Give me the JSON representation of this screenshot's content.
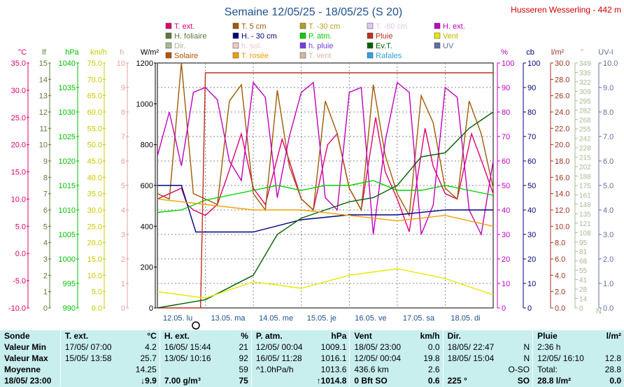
{
  "title": "Semaine 12/05/25 - 18/05/25 (S 20)",
  "station": "Husseren Wesserling - 442 m",
  "legend": [
    {
      "label": "T. ext.",
      "color": "#e0006e"
    },
    {
      "label": "T. 5 cm",
      "color": "#a05a00"
    },
    {
      "label": "T. -30 cm",
      "color": "#b0a020"
    },
    {
      "label": "T. -80 cm",
      "color": "#e0c8f0"
    },
    {
      "label": "H. ext.",
      "color": "#c000c0"
    },
    {
      "label": "H. foliaire",
      "color": "#5a7a3a"
    },
    {
      "label": "H. - 30 cm",
      "color": "#00007f"
    },
    {
      "label": "P. atm.",
      "color": "#00d000"
    },
    {
      "label": "Pluie",
      "color": "#c03020"
    },
    {
      "label": "Vent",
      "color": "#e8e800"
    },
    {
      "label": "Dir.",
      "color": "#a8b890"
    },
    {
      "label": "h. sol.",
      "color": "#f0c8c8"
    },
    {
      "label": "h. pluie",
      "color": "#7040e0"
    },
    {
      "label": "Ev.T.",
      "color": "#006000"
    },
    {
      "label": "UV",
      "color": "#6070a0"
    },
    {
      "label": "Solaire",
      "color": "#b85000"
    },
    {
      "label": "T. rosée",
      "color": "#f0a000"
    },
    {
      "label": "T. vent",
      "color": "#d8b8a0"
    },
    {
      "label": "Rafales",
      "color": "#30a0e0"
    }
  ],
  "axes": {
    "left": [
      {
        "unit": "°C",
        "color": "#e0006e",
        "ticks": [
          "35.0",
          "30.0",
          "25.0",
          "20.0",
          "15.0",
          "10.0",
          "5.0",
          "0.0",
          "-5.0",
          "-10.0"
        ]
      },
      {
        "unit": "lf",
        "color": "#5a7a3a",
        "ticks": [
          "15",
          "14",
          "13",
          "12",
          "11",
          "10",
          "9",
          "8",
          "7",
          "6",
          "5",
          "4",
          "3",
          "2",
          "1",
          "0"
        ]
      },
      {
        "unit": "hPa",
        "color": "#00c000",
        "ticks": [
          "1040",
          "1035",
          "1030",
          "1025",
          "1020",
          "1015",
          "1010",
          "1005",
          "1000",
          "995",
          "990"
        ]
      },
      {
        "unit": "km/h",
        "color": "#c8c800",
        "ticks": [
          "75.0",
          "70.0",
          "65.0",
          "60.0",
          "55.0",
          "50.0",
          "45.0",
          "40.0",
          "35.0",
          "30.0",
          "25.0",
          "20.0",
          "15.0",
          "10.0",
          "5.0",
          "0.0"
        ]
      },
      {
        "unit": "h",
        "color": "#e0a0a0",
        "ticks": [
          "10",
          "9",
          "8",
          "7",
          "6",
          "5",
          "4",
          "3",
          "2",
          "1",
          "0"
        ]
      },
      {
        "unit": "W/m²",
        "color": "#000000",
        "ticks": [
          "1200",
          "1000",
          "800",
          "600",
          "400",
          "200",
          "0"
        ]
      }
    ],
    "right": [
      {
        "unit": "%",
        "color": "#c000c0",
        "ticks": [
          "100",
          "90",
          "80",
          "70",
          "60",
          "50",
          "40",
          "30",
          "20",
          "10",
          "0"
        ]
      },
      {
        "unit": "cb",
        "color": "#00007f",
        "ticks": [
          "100",
          "90",
          "80",
          "70",
          "60",
          "50",
          "40",
          "30",
          "20",
          "10",
          "0"
        ]
      },
      {
        "unit": "l/m²",
        "color": "#a03020",
        "ticks": [
          "30.0",
          "28.0",
          "26.0",
          "24.0",
          "22.0",
          "20.0",
          "18.0",
          "16.0",
          "14.0",
          "12.0",
          "10.0",
          "8.0",
          "6.0",
          "4.0",
          "2.0",
          "0.0"
        ]
      },
      {
        "unit": "°",
        "color": "#a8b890",
        "ticks": [
          "349",
          "335",
          "322",
          "309",
          "295",
          "282",
          "268",
          "255",
          "242",
          "228",
          "215",
          "202",
          "188",
          "175",
          "161",
          "148",
          "135",
          "121",
          "108",
          "95",
          "81",
          "68",
          "55",
          "41",
          "28",
          "14",
          "0"
        ]
      },
      {
        "unit": "",
        "color": "#a8b890",
        "ticks": [
          "N"
        ]
      },
      {
        "unit": "UV-I",
        "color": "#6070a0",
        "ticks": [
          "10.0",
          "9.0",
          "8.0",
          "7.0",
          "6.0",
          "5.0",
          "4.0",
          "3.0",
          "2.0",
          "1.0",
          "0.0"
        ]
      }
    ]
  },
  "x_labels": [
    "12.05. lu",
    "13.05. ma",
    "14.05. me",
    "15.05. je",
    "16.05. ve",
    "17.05. sa",
    "18.05. di"
  ],
  "chart_data": {
    "type": "line",
    "title": "Semaine 12/05/25 - 18/05/25 (S 20)",
    "x_unit": "day",
    "x_range": [
      "12.05.",
      "19.05."
    ],
    "series": [
      {
        "name": "T. ext.",
        "unit": "°C",
        "color": "#e0006e",
        "x": [
          0,
          0.25,
          0.5,
          0.62,
          0.75,
          1,
          1.25,
          1.45,
          1.75,
          2,
          2.25,
          2.6,
          2.75,
          3,
          3.25,
          3.55,
          3.75,
          4,
          4.25,
          4.55,
          4.75,
          5,
          5.25,
          5.58,
          5.75,
          6,
          6.25,
          6.55,
          6.8,
          7
        ],
        "y": [
          10,
          11,
          12,
          9,
          8,
          7,
          9,
          14,
          22,
          12,
          9,
          21,
          17,
          10,
          8,
          20,
          22,
          12,
          8,
          25,
          15,
          10,
          4,
          23,
          16,
          11,
          10,
          22,
          16,
          11
        ]
      },
      {
        "name": "T. 5 cm",
        "unit": "°C",
        "color": "#a05a00",
        "x": [
          0,
          0.25,
          0.5,
          0.75,
          1,
          1.25,
          1.5,
          1.75,
          2,
          2.25,
          2.5,
          2.75,
          3,
          3.25,
          3.5,
          3.75,
          4,
          4.25,
          4.5,
          4.75,
          5,
          5.25,
          5.5,
          5.75,
          6,
          6.25,
          6.5,
          6.75,
          7
        ],
        "y": [
          11,
          10,
          36,
          11,
          10,
          9,
          28,
          31,
          11,
          8,
          30,
          16,
          10,
          8,
          28,
          22,
          12,
          8,
          31,
          18,
          11,
          7,
          29,
          24,
          12,
          10,
          28,
          22,
          12
        ]
      },
      {
        "name": "H. ext.",
        "unit": "%",
        "color": "#c000c0",
        "x": [
          0,
          0.25,
          0.5,
          0.75,
          1,
          1.25,
          1.5,
          1.75,
          2,
          2.25,
          2.5,
          2.75,
          3,
          3.25,
          3.5,
          3.75,
          4,
          4.25,
          4.5,
          4.75,
          5,
          5.25,
          5.5,
          5.75,
          6,
          6.25,
          6.5,
          6.75,
          7
        ],
        "y": [
          62,
          80,
          58,
          88,
          90,
          85,
          60,
          52,
          92,
          86,
          45,
          70,
          88,
          92,
          45,
          40,
          88,
          90,
          30,
          68,
          92,
          88,
          30,
          42,
          90,
          86,
          40,
          30,
          60
        ]
      },
      {
        "name": "H. - 30 cm",
        "unit": "cb",
        "color": "#00007f",
        "x": [
          0,
          0.5,
          0.8,
          1,
          2,
          3,
          4,
          5,
          6,
          7
        ],
        "y": [
          50,
          50,
          31,
          31,
          31,
          36,
          38,
          38,
          40,
          40
        ]
      },
      {
        "name": "P. atm.",
        "unit": "hPa",
        "color": "#00d000",
        "x": [
          0,
          0.5,
          1,
          1.5,
          2,
          2.5,
          3,
          3.5,
          4,
          4.5,
          5,
          5.5,
          6,
          6.5,
          7
        ],
        "y": [
          1009.5,
          1010,
          1012,
          1013,
          1014,
          1015,
          1014,
          1015,
          1015,
          1016,
          1014,
          1014,
          1015,
          1014,
          1013
        ]
      },
      {
        "name": "Pluie",
        "unit": "l/m²",
        "color": "#c03020",
        "x": [
          0,
          0.9,
          1,
          7
        ],
        "y": [
          0,
          0,
          28.8,
          28.8
        ]
      },
      {
        "name": "Ev.T.",
        "unit": "l/m²",
        "color": "#006000",
        "x": [
          0,
          1,
          2,
          2.5,
          3,
          3.5,
          4,
          4.5,
          5,
          5.5,
          6,
          6.5,
          7
        ],
        "y": [
          0,
          1,
          4,
          9,
          11,
          12,
          13,
          13.5,
          15,
          18.5,
          19,
          22,
          24
        ]
      },
      {
        "name": "T. rosée",
        "unit": "°C",
        "color": "#f0a000",
        "x": [
          0,
          1,
          2,
          3,
          4,
          5,
          6,
          7
        ],
        "y": [
          10,
          9,
          8,
          8,
          7,
          6,
          7,
          5
        ]
      },
      {
        "name": "Vent",
        "unit": "km/h",
        "color": "#e8e800",
        "x": [
          0,
          1,
          2,
          3,
          4,
          5,
          6,
          7
        ],
        "y": [
          5,
          3,
          8,
          6,
          10,
          12,
          9,
          4
        ]
      }
    ]
  },
  "summary": {
    "headers": [
      "Sonde",
      "T. ext.",
      "°C",
      "H. ext.",
      "%",
      "P. atm.",
      "hPa",
      "Vent",
      "km/h",
      "Dir.",
      "",
      "Pluie",
      "l/m²"
    ],
    "rows": [
      [
        "Valeur Min",
        "17/05/ 07:00",
        "4.2",
        "16/05/ 15:44",
        "21",
        "12/05/ 00:04",
        "1009.1",
        "18/05/ 23:00",
        "0.0",
        "18/05/ 22:47",
        "N",
        "2:36 h",
        ""
      ],
      [
        "Valeur Max",
        "15/05/ 13:58",
        "25.7",
        "13/05/ 10:16",
        "92",
        "16/05/ 11:28",
        "1016.1",
        "12/05/ 00:04",
        "19.8",
        "18/05/ 15:04",
        "N",
        "12/05/ 16:10",
        "12.8"
      ],
      [
        "Moyenne",
        "",
        "14.25",
        "",
        "59",
        "^1.0hPa/h",
        "1013.6",
        "436.6 km",
        "2.6",
        "",
        "O-SO",
        "Total:",
        "28.8"
      ],
      [
        "18/05/ 23:00",
        "",
        "↓9.9",
        "7.00 g/m³",
        "75",
        "",
        "↑1014.8",
        "0 Bft SO",
        "0.6",
        "225 °",
        "SO",
        "28.8 l/m²",
        "0.0"
      ]
    ]
  }
}
